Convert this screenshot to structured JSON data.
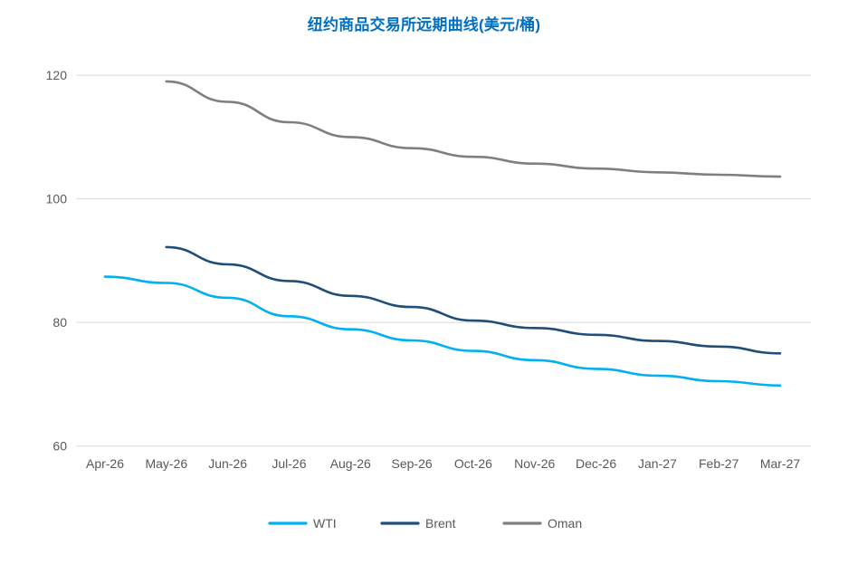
{
  "chart_data": {
    "type": "line",
    "title": "纽约商品交易所远期曲线(美元/桶)",
    "xlabel": "",
    "ylabel": "",
    "categories": [
      "Apr-26",
      "May-26",
      "Jun-26",
      "Jul-26",
      "Aug-26",
      "Sep-26",
      "Oct-26",
      "Nov-26",
      "Dec-26",
      "Jan-27",
      "Feb-27",
      "Mar-27"
    ],
    "series": [
      {
        "name": "WTI",
        "color": "#00b0f0",
        "start_index": 0,
        "values": [
          87.4,
          86.4,
          84.0,
          81.0,
          78.9,
          77.1,
          75.4,
          73.9,
          72.5,
          71.4,
          70.5,
          69.8
        ]
      },
      {
        "name": "Brent",
        "color": "#1f4e79",
        "start_index": 1,
        "values": [
          92.2,
          89.4,
          86.7,
          84.3,
          82.5,
          80.3,
          79.1,
          78.0,
          77.0,
          76.1,
          75.0
        ]
      },
      {
        "name": "Oman",
        "color": "#7f7f7f",
        "start_index": 1,
        "values": [
          119.0,
          115.7,
          112.4,
          110.0,
          108.2,
          106.8,
          105.7,
          104.9,
          104.3,
          103.9,
          103.6
        ]
      }
    ],
    "ylim": [
      60,
      124
    ],
    "y_ticks": [
      60,
      80,
      100,
      120
    ],
    "grid": "horizontal-only",
    "legend_position": "bottom"
  },
  "colors": {
    "title": "#0070c0",
    "axis_text": "#595959",
    "gridline": "#d9d9d9",
    "background": "#ffffff"
  }
}
